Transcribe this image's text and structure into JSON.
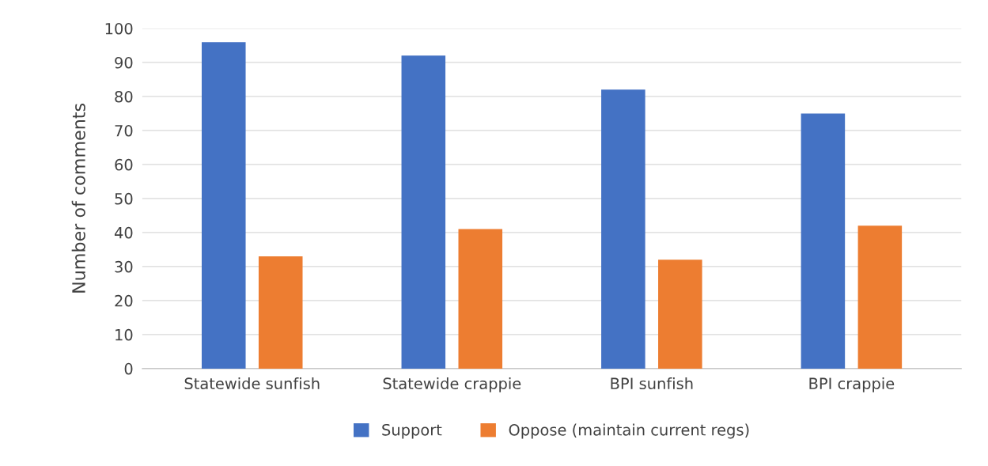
{
  "chart_data": {
    "type": "bar",
    "ylabel": "Number of comments",
    "categories": [
      "Statewide sunfish",
      "Statewide crappie",
      "BPI sunfish",
      "BPI crappie"
    ],
    "series": [
      {
        "name": "Support",
        "color": "#4472c4",
        "values": [
          96,
          92,
          82,
          75
        ]
      },
      {
        "name": "Oppose (maintain current regs)",
        "color": "#ed7d31",
        "values": [
          33,
          41,
          32,
          42
        ]
      }
    ],
    "ylim": [
      0,
      100
    ],
    "yticks": [
      0,
      10,
      20,
      30,
      40,
      50,
      60,
      70,
      80,
      90,
      100
    ],
    "grid": "y",
    "legend": "bottom"
  }
}
